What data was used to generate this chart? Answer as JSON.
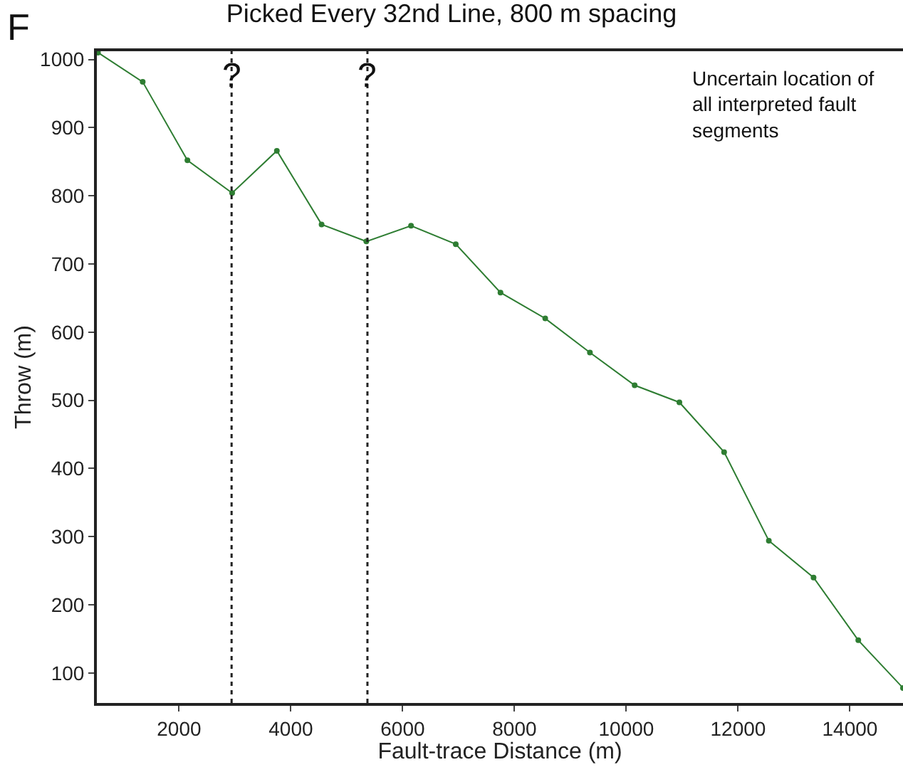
{
  "chart_data": {
    "type": "line",
    "title": "Picked Every 32nd Line, 800 m spacing",
    "xlabel": "Fault-trace Distance (m)",
    "ylabel": "Throw (m)",
    "x": [
      550,
      1350,
      2150,
      2950,
      3750,
      4550,
      5350,
      6150,
      6950,
      7750,
      8550,
      9350,
      10150,
      10950,
      11750,
      12550,
      13350,
      14150,
      14950
    ],
    "series": [
      {
        "color": "#2e7d32",
        "values": [
          1010,
          967,
          852,
          804,
          866,
          758,
          733,
          756,
          729,
          658,
          620,
          570,
          522,
          497,
          424,
          294,
          240,
          148,
          78
        ]
      }
    ],
    "xlim": [
      530,
      14950
    ],
    "ylim": [
      56,
      1012
    ],
    "xticks": [
      2000,
      4000,
      6000,
      8000,
      10000,
      12000,
      14000
    ],
    "yticks": [
      100,
      200,
      300,
      400,
      500,
      600,
      700,
      800,
      900,
      1000
    ],
    "ref_lines": [
      {
        "axis": "x",
        "value": 2940,
        "label": "?",
        "color": "#222222",
        "line_style": "dotted"
      },
      {
        "axis": "x",
        "value": 5370,
        "label": "?",
        "color": "#222222",
        "line_style": "dotted"
      }
    ],
    "annotations": [
      "F",
      "Uncertain location of\nall interpreted fault\nsegments"
    ],
    "marker": "circle",
    "line_style": "solid"
  }
}
